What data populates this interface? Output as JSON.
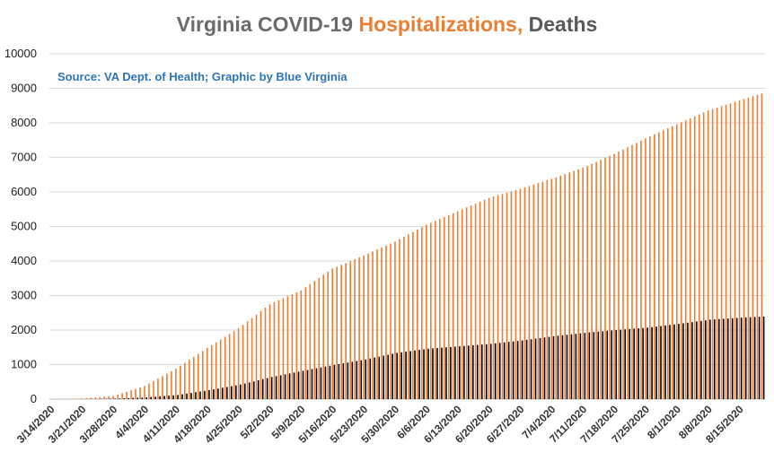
{
  "chart_data": {
    "type": "bar",
    "title_parts": [
      "Virginia COVID-19 ",
      "Hospitalizations,",
      " Deaths"
    ],
    "source_note": "Source: VA Dept. of Health; Graphic by Blue Virginia",
    "start_date": "3/14/2020",
    "end_date": "8/20/2020",
    "x_tick_labels": [
      "3/14/2020",
      "3/21/2020",
      "3/28/2020",
      "4/4/2020",
      "4/11/2020",
      "4/18/2020",
      "4/25/2020",
      "5/2/2020",
      "5/9/2020",
      "5/16/2020",
      "5/23/2020",
      "5/30/2020",
      "6/6/2020",
      "6/13/2020",
      "6/20/2020",
      "6/27/2020",
      "7/4/2020",
      "7/11/2020",
      "7/18/2020",
      "7/25/2020",
      "8/1/2020",
      "8/8/2020",
      "8/15/2020"
    ],
    "y_ticks": [
      0,
      1000,
      2000,
      3000,
      4000,
      5000,
      6000,
      7000,
      8000,
      9000,
      10000
    ],
    "ylim": [
      0,
      10000
    ],
    "grid": true,
    "series": [
      {
        "name": "Hospitalizations",
        "color": "#ed7d31",
        "anchors": [
          [
            "3/14/2020",
            0
          ],
          [
            "3/21/2020",
            20
          ],
          [
            "3/28/2020",
            90
          ],
          [
            "4/4/2020",
            380
          ],
          [
            "4/11/2020",
            880
          ],
          [
            "4/18/2020",
            1480
          ],
          [
            "4/25/2020",
            2050
          ],
          [
            "5/2/2020",
            2750
          ],
          [
            "5/9/2020",
            3150
          ],
          [
            "5/16/2020",
            3780
          ],
          [
            "5/23/2020",
            4160
          ],
          [
            "5/30/2020",
            4560
          ],
          [
            "6/6/2020",
            5050
          ],
          [
            "6/13/2020",
            5440
          ],
          [
            "6/20/2020",
            5830
          ],
          [
            "6/27/2020",
            6090
          ],
          [
            "7/4/2020",
            6380
          ],
          [
            "7/11/2020",
            6700
          ],
          [
            "7/18/2020",
            7100
          ],
          [
            "7/25/2020",
            7550
          ],
          [
            "8/1/2020",
            7960
          ],
          [
            "8/8/2020",
            8360
          ],
          [
            "8/15/2020",
            8650
          ],
          [
            "8/20/2020",
            8850
          ]
        ]
      },
      {
        "name": "Deaths",
        "color": "#000000",
        "anchors": [
          [
            "3/14/2020",
            0
          ],
          [
            "3/21/2020",
            2
          ],
          [
            "3/28/2020",
            15
          ],
          [
            "4/4/2020",
            50
          ],
          [
            "4/11/2020",
            120
          ],
          [
            "4/18/2020",
            260
          ],
          [
            "4/25/2020",
            420
          ],
          [
            "5/2/2020",
            640
          ],
          [
            "5/9/2020",
            820
          ],
          [
            "5/16/2020",
            990
          ],
          [
            "5/23/2020",
            1150
          ],
          [
            "5/30/2020",
            1340
          ],
          [
            "6/6/2020",
            1460
          ],
          [
            "6/13/2020",
            1530
          ],
          [
            "6/20/2020",
            1600
          ],
          [
            "6/27/2020",
            1700
          ],
          [
            "7/4/2020",
            1820
          ],
          [
            "7/11/2020",
            1920
          ],
          [
            "7/18/2020",
            2000
          ],
          [
            "7/25/2020",
            2070
          ],
          [
            "8/1/2020",
            2180
          ],
          [
            "8/8/2020",
            2300
          ],
          [
            "8/15/2020",
            2360
          ],
          [
            "8/20/2020",
            2390
          ]
        ]
      }
    ]
  }
}
